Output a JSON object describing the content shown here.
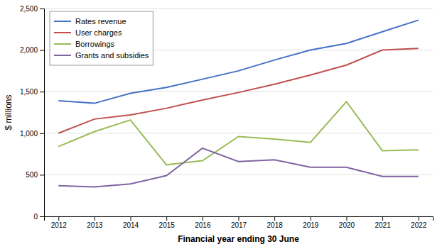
{
  "chart_data": {
    "type": "line",
    "xlabel": "Financial year ending 30 June",
    "ylabel": "$ millions",
    "x": [
      2012,
      2013,
      2014,
      2015,
      2016,
      2017,
      2018,
      2019,
      2020,
      2021,
      2022
    ],
    "xlim": [
      2011.6,
      2022.4
    ],
    "xticks": [
      2012,
      2013,
      2014,
      2015,
      2016,
      2017,
      2018,
      2019,
      2020,
      2021,
      2022
    ],
    "ylim": [
      0,
      2500
    ],
    "yticks": [
      0,
      500,
      {
        "value": 1000,
        "label": "1,000"
      },
      {
        "value": 1500,
        "label": "1,500"
      },
      {
        "value": 2000,
        "label": "2,000"
      },
      {
        "value": 2500,
        "label": "2,500"
      }
    ],
    "grid": true,
    "legend": "top-left",
    "series": [
      {
        "name": "Rates revenue",
        "color": "#4472C4",
        "values": [
          1390,
          1360,
          1480,
          1550,
          1650,
          1750,
          1880,
          2000,
          2080,
          2220,
          2360
        ]
      },
      {
        "name": "User charges",
        "color": "#C0504D",
        "values": [
          1000,
          1170,
          1220,
          1300,
          1400,
          1490,
          1590,
          1700,
          1820,
          2000,
          2020
        ]
      },
      {
        "name": "Borrowings",
        "color": "#9BBB59",
        "values": [
          840,
          1020,
          1160,
          620,
          670,
          960,
          930,
          890,
          1380,
          790,
          800
        ]
      },
      {
        "name": "Grants and subsidies",
        "color": "#8064A2",
        "values": [
          370,
          355,
          390,
          490,
          820,
          660,
          680,
          590,
          590,
          480,
          480
        ]
      }
    ]
  }
}
